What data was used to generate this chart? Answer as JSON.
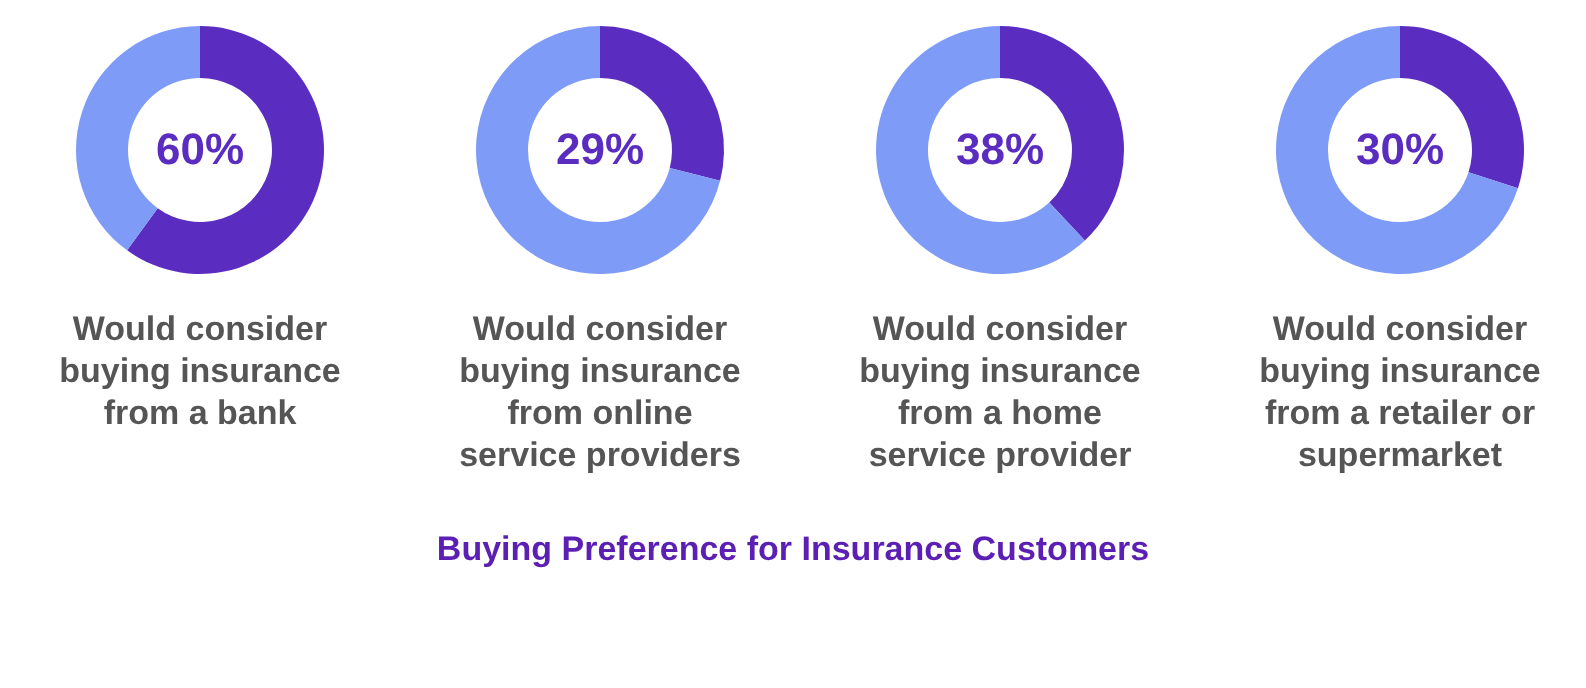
{
  "chart_data": [
    {
      "type": "donut",
      "title": "Would consider buying insurance from a bank",
      "categories": [
        null,
        null
      ],
      "values": [
        60,
        40
      ],
      "colors": [
        "#5a2dc0",
        "#7e9bf7"
      ],
      "value_labels": [
        "60%",
        null
      ]
    },
    {
      "type": "donut",
      "title": "Would consider buying insurance from online service providers",
      "categories": [
        null,
        null
      ],
      "values": [
        29,
        71
      ],
      "colors": [
        "#5a2dc0",
        "#7e9bf7"
      ],
      "value_labels": [
        "29%",
        null
      ]
    },
    {
      "type": "donut",
      "title": "Would consider buying insurance from a home service provider",
      "categories": [
        null,
        null
      ],
      "values": [
        38,
        62
      ],
      "colors": [
        "#5a2dc0",
        "#7e9bf7"
      ],
      "value_labels": [
        "38%",
        null
      ]
    },
    {
      "type": "donut",
      "title": "Would consider buying insurance from a retailer or supermarket",
      "categories": [
        null,
        null
      ],
      "values": [
        30,
        70
      ],
      "colors": [
        "#5a2dc0",
        "#7e9bf7"
      ],
      "value_labels": [
        "30%",
        null
      ]
    },
    {
      "type": "other",
      "title": "Buying Preference for Insurance Customers"
    }
  ]
}
